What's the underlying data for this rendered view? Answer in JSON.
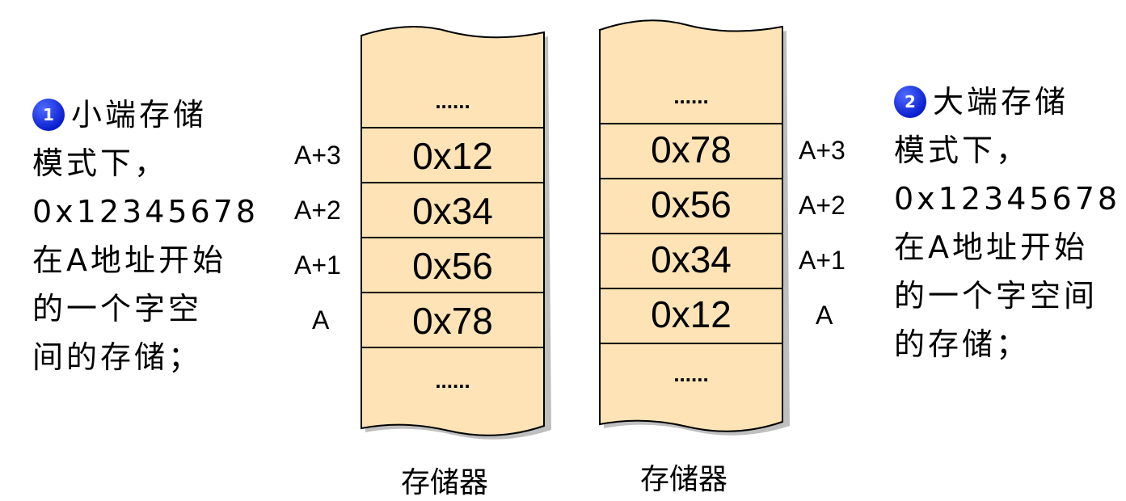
{
  "left_note": {
    "badge": "1",
    "lines": [
      "小端存储",
      "模式下，",
      "0x12345678",
      "在A地址开始",
      "的一个字空",
      "间的存储；"
    ]
  },
  "right_note": {
    "badge": "2",
    "lines": [
      "大端存储",
      "模式下，",
      "0x12345678",
      "在A地址开始",
      "的一个字空间",
      "的存储；"
    ]
  },
  "left_memory": {
    "top_ellipsis": "......",
    "cells": [
      "0x12",
      "0x34",
      "0x56",
      "0x78"
    ],
    "bottom_ellipsis": "......",
    "addresses": [
      "A+3",
      "A+2",
      "A+1",
      "A"
    ],
    "caption": "存储器"
  },
  "right_memory": {
    "top_ellipsis": "......",
    "cells": [
      "0x78",
      "0x56",
      "0x34",
      "0x12"
    ],
    "bottom_ellipsis": "......",
    "addresses": [
      "A+3",
      "A+2",
      "A+1",
      "A"
    ],
    "caption": "存储器"
  },
  "colors": {
    "memory_fill": "#fde3b5",
    "badge": "#1030e0",
    "outline": "#000000"
  }
}
